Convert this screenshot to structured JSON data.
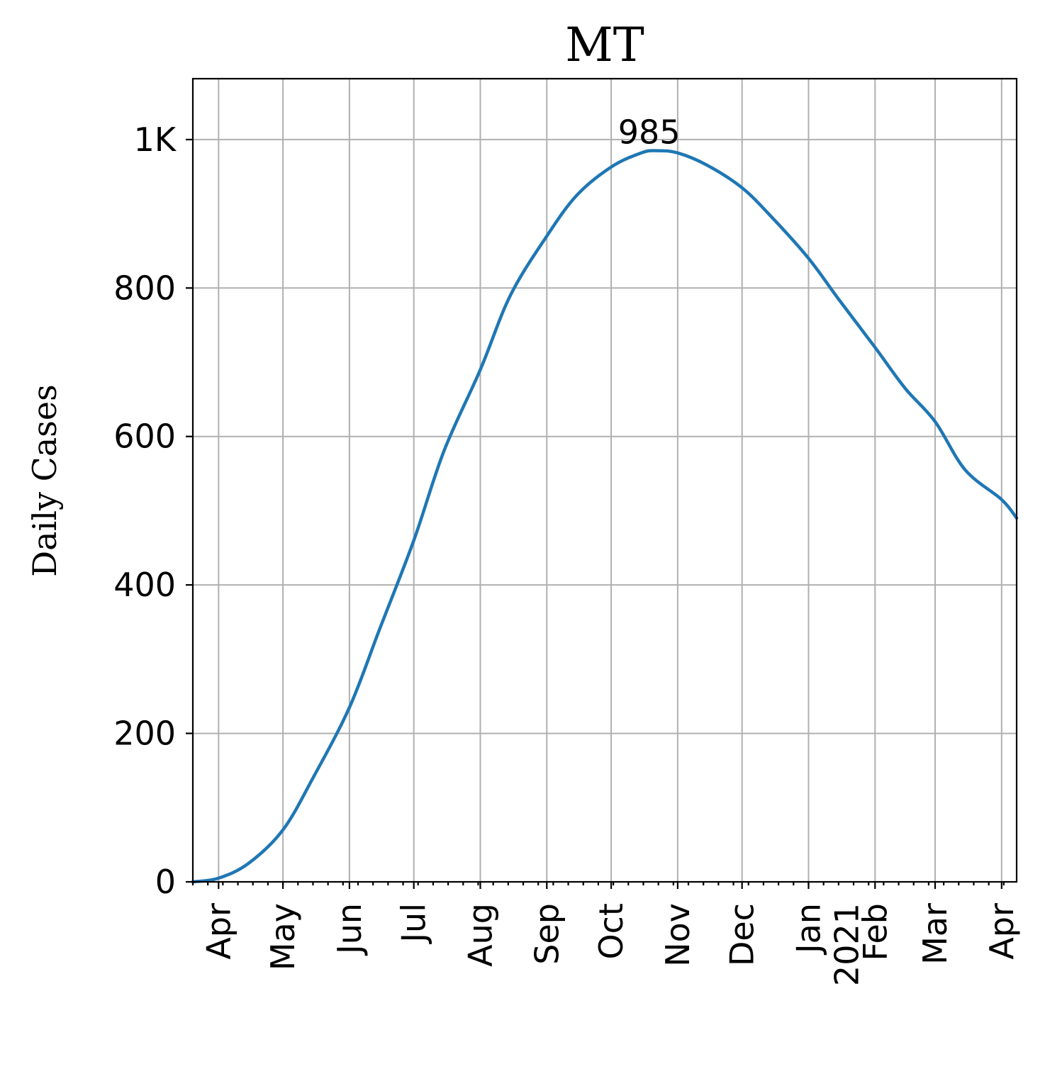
{
  "chart_data": {
    "type": "line",
    "title": "MT",
    "xlabel": "",
    "ylabel": "Daily Cases",
    "grid": true,
    "xlim": [
      "2020-03-20",
      "2021-04-08"
    ],
    "ylim": [
      0,
      1082
    ],
    "y_ticks": [
      {
        "value": 0,
        "label": "0"
      },
      {
        "value": 200,
        "label": "200"
      },
      {
        "value": 400,
        "label": "400"
      },
      {
        "value": 600,
        "label": "600"
      },
      {
        "value": 800,
        "label": "800"
      },
      {
        "value": 1000,
        "label": "1K"
      }
    ],
    "x_ticks": [
      {
        "date": "2020-04-01",
        "label": "Apr"
      },
      {
        "date": "2020-05-01",
        "label": "May"
      },
      {
        "date": "2020-06-01",
        "label": "Jun"
      },
      {
        "date": "2020-07-01",
        "label": "Jul"
      },
      {
        "date": "2020-08-01",
        "label": "Aug"
      },
      {
        "date": "2020-09-01",
        "label": "Sep"
      },
      {
        "date": "2020-10-01",
        "label": "Oct"
      },
      {
        "date": "2020-11-01",
        "label": "Nov"
      },
      {
        "date": "2020-12-01",
        "label": "Dec"
      },
      {
        "date": "2021-01-01",
        "label": "Jan\n2021"
      },
      {
        "date": "2021-02-01",
        "label": "Feb"
      },
      {
        "date": "2021-03-01",
        "label": "Mar"
      },
      {
        "date": "2021-04-01",
        "label": "Apr"
      }
    ],
    "annotations": [
      {
        "date": "2020-10-22",
        "value": 985,
        "text": "985"
      }
    ],
    "series": [
      {
        "color": "#1f77b4",
        "points": [
          [
            "2020-03-20",
            0
          ],
          [
            "2020-04-01",
            5
          ],
          [
            "2020-04-15",
            25
          ],
          [
            "2020-05-01",
            70
          ],
          [
            "2020-05-15",
            140
          ],
          [
            "2020-06-01",
            235
          ],
          [
            "2020-06-15",
            340
          ],
          [
            "2020-07-01",
            460
          ],
          [
            "2020-07-15",
            580
          ],
          [
            "2020-08-01",
            690
          ],
          [
            "2020-08-15",
            790
          ],
          [
            "2020-09-01",
            870
          ],
          [
            "2020-09-15",
            925
          ],
          [
            "2020-10-01",
            963
          ],
          [
            "2020-10-15",
            982
          ],
          [
            "2020-10-22",
            985
          ],
          [
            "2020-11-01",
            982
          ],
          [
            "2020-11-15",
            965
          ],
          [
            "2020-12-01",
            935
          ],
          [
            "2020-12-15",
            895
          ],
          [
            "2021-01-01",
            840
          ],
          [
            "2021-01-15",
            785
          ],
          [
            "2021-02-01",
            720
          ],
          [
            "2021-02-15",
            665
          ],
          [
            "2021-03-01",
            620
          ],
          [
            "2021-03-15",
            555
          ],
          [
            "2021-04-01",
            515
          ],
          [
            "2021-04-08",
            490
          ]
        ]
      }
    ]
  }
}
